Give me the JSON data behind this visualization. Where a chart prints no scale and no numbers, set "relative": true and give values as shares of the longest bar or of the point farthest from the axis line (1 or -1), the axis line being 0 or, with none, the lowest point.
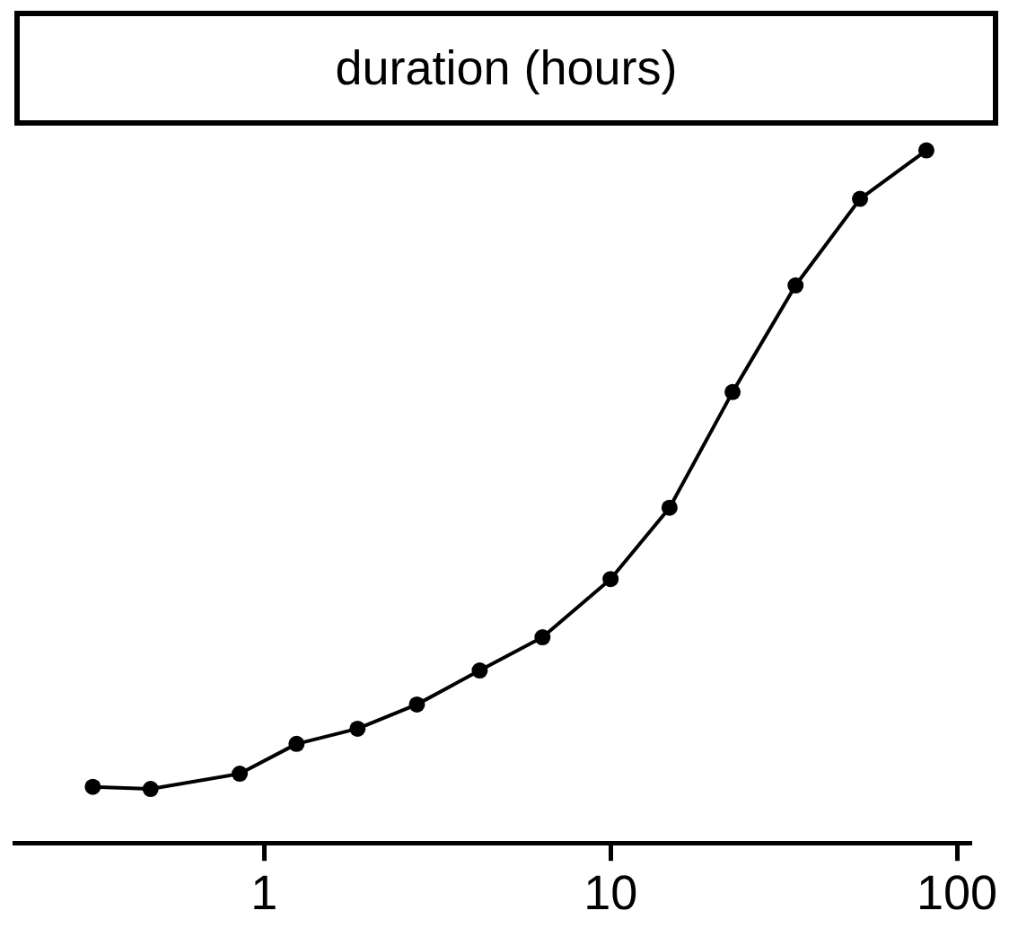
{
  "chart_data": {
    "type": "line",
    "title": "duration (hours)",
    "relative": true,
    "log": "x",
    "x": [
      0.32,
      0.47,
      0.85,
      1.24,
      1.86,
      2.76,
      4.19,
      6.36,
      10,
      14.8,
      22.5,
      34.2,
      52.5,
      81.6
    ],
    "xlim": [
      0.19,
      108.7
    ],
    "xticks": [
      1,
      10,
      100
    ],
    "series": [
      {
        "color": "#000000",
        "values": [
          0.081,
          0.078,
          0.1,
          0.143,
          0.165,
          0.2,
          0.249,
          0.297,
          0.381,
          0.484,
          0.651,
          0.805,
          0.93,
          1.0
        ]
      }
    ],
    "marker": "circle",
    "line_style": "solid",
    "grid": false,
    "legend": false
  }
}
